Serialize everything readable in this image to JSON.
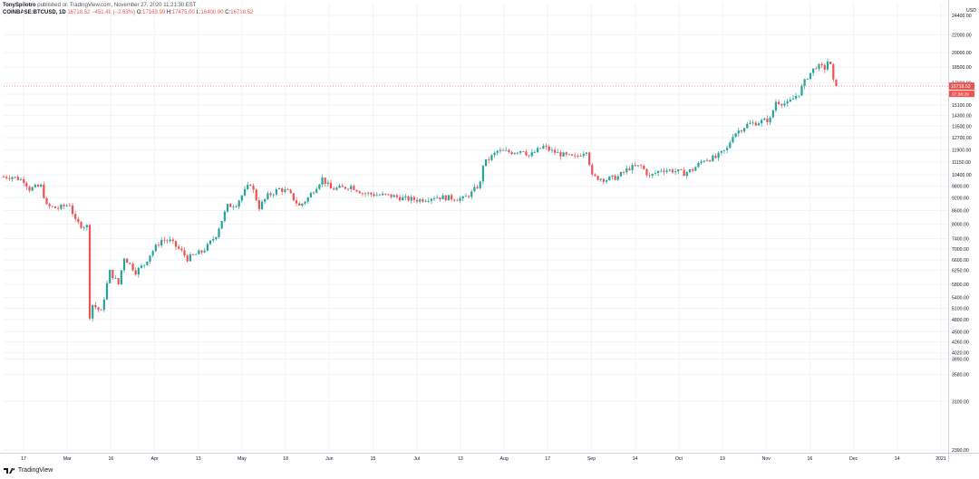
{
  "header": {
    "author": "TonySpilotro",
    "published": "published on TradingView.com, November 27, 2020 11:21:30 EST"
  },
  "legend": {
    "symbol": "COINBASE:BTCUSD, 1D",
    "close_value": "16718.52",
    "change": "−451.48 (−2.63%)",
    "ohlc": [
      {
        "k": "O:",
        "v": "17169.99"
      },
      {
        "k": "H:",
        "v": "17475.00"
      },
      {
        "k": "L:",
        "v": "16400.00"
      },
      {
        "k": "C:",
        "v": "16718.52"
      }
    ]
  },
  "brand": "TradingView",
  "colors": {
    "up": "#26a69a",
    "down": "#ef5350",
    "grid": "#f0f3fa",
    "text": "#131722"
  },
  "chart_data": {
    "type": "candlestick",
    "title": "COINBASE:BTCUSD, 1D",
    "currency": "USD",
    "price_scale": "log",
    "grid": true,
    "y_ticks": [
      2390,
      3100,
      3580,
      3890,
      4020,
      4260,
      4500,
      4800,
      5100,
      5400,
      5800,
      6250,
      6600,
      7000,
      7400,
      8000,
      8600,
      9200,
      9800,
      10400,
      11150,
      11900,
      12700,
      13500,
      14300,
      15100,
      16000,
      17000,
      18500,
      20000,
      22000,
      24400
    ],
    "y_tick_labels": [
      "2390.00",
      "3100.00",
      "3580.00",
      "3890.00",
      "4020.00",
      "4260.00",
      "4500.00",
      "4800.00",
      "5100.00",
      "5400.00",
      "5800.00",
      "6250.00",
      "6600.00",
      "7000.00",
      "7400.00",
      "8000.00",
      "8600.00",
      "9200.00",
      "9800.00",
      "10400.00",
      "11150.00",
      "11900.00",
      "12700.00",
      "13500.00",
      "14300.00",
      "15100.00",
      "16000.00",
      "17000.00",
      "18500.00",
      "20000.00",
      "22000.00",
      "24400.00"
    ],
    "x_ticks": [
      "17",
      "Mar",
      "16",
      "Apr",
      "13",
      "May",
      "18",
      "Jun",
      "15",
      "Jul",
      "13",
      "Aug",
      "17",
      "Sep",
      "14",
      "Oct",
      "19",
      "Nov",
      "16",
      "Dec",
      "14",
      "2021"
    ],
    "last_price": "16718.52",
    "countdown": "07:38:29",
    "x_range": [
      "2020-02-11",
      "2021-01-05"
    ],
    "points": [
      [
        "2020-02-11",
        10300
      ],
      [
        "2020-02-14",
        10300
      ],
      [
        "2020-02-18",
        10100
      ],
      [
        "2020-02-20",
        9650
      ],
      [
        "2020-02-24",
        9800
      ],
      [
        "2020-02-26",
        8800
      ],
      [
        "2020-03-01",
        8700
      ],
      [
        "2020-03-05",
        8900
      ],
      [
        "2020-03-07",
        8100
      ],
      [
        "2020-03-09",
        7950
      ],
      [
        "2020-03-11",
        7900
      ],
      [
        "2020-03-12",
        4900
      ],
      [
        "2020-03-13",
        5200
      ],
      [
        "2020-03-16",
        5000
      ],
      [
        "2020-03-19",
        6200
      ],
      [
        "2020-03-22",
        5800
      ],
      [
        "2020-03-24",
        6700
      ],
      [
        "2020-03-28",
        6200
      ],
      [
        "2020-03-31",
        6450
      ],
      [
        "2020-04-02",
        6800
      ],
      [
        "2020-04-06",
        7350
      ],
      [
        "2020-04-09",
        7300
      ],
      [
        "2020-04-13",
        6900
      ],
      [
        "2020-04-15",
        6650
      ],
      [
        "2020-04-20",
        6900
      ],
      [
        "2020-04-22",
        7100
      ],
      [
        "2020-04-25",
        7550
      ],
      [
        "2020-04-29",
        8800
      ],
      [
        "2020-05-02",
        8900
      ],
      [
        "2020-05-07",
        9950
      ],
      [
        "2020-05-10",
        8750
      ],
      [
        "2020-05-13",
        9300
      ],
      [
        "2020-05-17",
        9650
      ],
      [
        "2020-05-20",
        9500
      ],
      [
        "2020-05-24",
        8800
      ],
      [
        "2020-05-27",
        9200
      ],
      [
        "2020-06-01",
        10200
      ],
      [
        "2020-06-04",
        9650
      ],
      [
        "2020-06-08",
        9700
      ],
      [
        "2020-06-11",
        9800
      ],
      [
        "2020-06-15",
        9450
      ],
      [
        "2020-06-20",
        9350
      ],
      [
        "2020-06-25",
        9300
      ],
      [
        "2020-06-30",
        9150
      ],
      [
        "2020-07-05",
        9100
      ],
      [
        "2020-07-10",
        9250
      ],
      [
        "2020-07-15",
        9200
      ],
      [
        "2020-07-20",
        9150
      ],
      [
        "2020-07-23",
        9450
      ],
      [
        "2020-07-26",
        9950
      ],
      [
        "2020-07-27",
        11000
      ],
      [
        "2020-08-01",
        11800
      ],
      [
        "2020-08-06",
        11750
      ],
      [
        "2020-08-10",
        11900
      ],
      [
        "2020-08-12",
        11500
      ],
      [
        "2020-08-17",
        12100
      ],
      [
        "2020-08-20",
        11800
      ],
      [
        "2020-08-25",
        11500
      ],
      [
        "2020-08-28",
        11400
      ],
      [
        "2020-09-01",
        11900
      ],
      [
        "2020-09-03",
        10300
      ],
      [
        "2020-09-08",
        10150
      ],
      [
        "2020-09-12",
        10300
      ],
      [
        "2020-09-16",
        10800
      ],
      [
        "2020-09-20",
        10900
      ],
      [
        "2020-09-23",
        10300
      ],
      [
        "2020-09-27",
        10700
      ],
      [
        "2020-10-01",
        10650
      ],
      [
        "2020-10-05",
        10500
      ],
      [
        "2020-10-08",
        10700
      ],
      [
        "2020-10-12",
        11300
      ],
      [
        "2020-10-16",
        11400
      ],
      [
        "2020-10-20",
        11950
      ],
      [
        "2020-10-22",
        12900
      ],
      [
        "2020-10-27",
        13600
      ],
      [
        "2020-10-31",
        13800
      ],
      [
        "2020-11-04",
        14000
      ],
      [
        "2020-11-06",
        15400
      ],
      [
        "2020-11-10",
        15200
      ],
      [
        "2020-11-14",
        16100
      ],
      [
        "2020-11-17",
        17600
      ],
      [
        "2020-11-20",
        18600
      ],
      [
        "2020-11-23",
        18400
      ],
      [
        "2020-11-24",
        19100
      ],
      [
        "2020-11-25",
        18600
      ],
      [
        "2020-11-26",
        17100
      ],
      [
        "2020-11-27",
        16718.52
      ]
    ]
  }
}
